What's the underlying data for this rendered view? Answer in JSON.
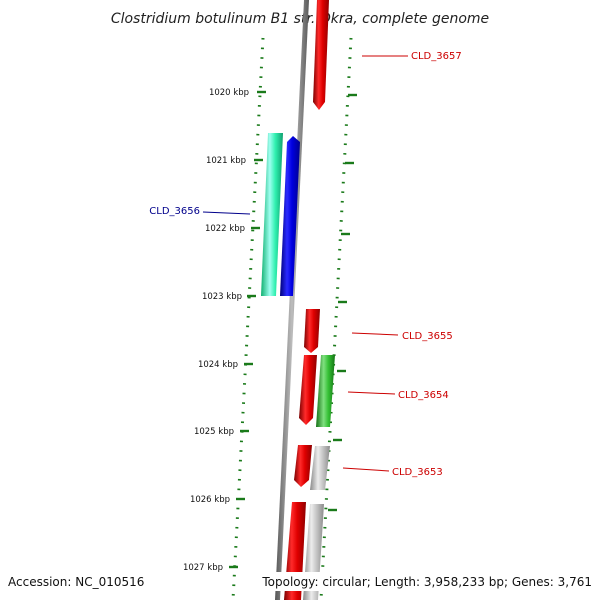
{
  "title": "Clostridium botulinum B1 str. Okra, complete genome",
  "footer": {
    "accession": "Accession: NC_010516",
    "summary": "Topology: circular; Length: 3,958,233 bp; Genes: 3,761"
  },
  "scale_marks": [
    {
      "label": "1020 kbp"
    },
    {
      "label": "1021 kbp"
    },
    {
      "label": "1022 kbp"
    },
    {
      "label": "1023 kbp"
    },
    {
      "label": "1024 kbp"
    },
    {
      "label": "1025 kbp"
    },
    {
      "label": "1026 kbp"
    },
    {
      "label": "1027 kbp"
    }
  ],
  "genes": [
    {
      "name": "CLD_3657",
      "color": "#cc0000",
      "label_color": "#cc0000"
    },
    {
      "name": "CLD_3656",
      "color": "#0000cc",
      "label_color": "#00008b"
    },
    {
      "name": "CLD_3655",
      "color": "#cc0000",
      "label_color": "#cc0000"
    },
    {
      "name": "CLD_3654",
      "color": "#cc0000",
      "label_color": "#cc0000"
    },
    {
      "name": "CLD_3653",
      "color": "#cc0000",
      "label_color": "#cc0000"
    }
  ],
  "colors": {
    "forward_cds": "#e00000",
    "reverse_cds": "#0a0ad8",
    "teal_feature": "#20e8a0",
    "green_feature": "#30c030",
    "grey_feature": "#b8b8b8",
    "backbone": "#808080",
    "tick": "#1a7a1a"
  }
}
